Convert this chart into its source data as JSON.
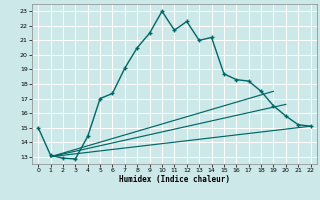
{
  "title": "",
  "xlabel": "Humidex (Indice chaleur)",
  "bg_color": "#cce8e8",
  "grid_color": "#aacccc",
  "line_color": "#006666",
  "xlim": [
    -0.5,
    22.5
  ],
  "ylim": [
    12.5,
    23.5
  ],
  "xticks": [
    0,
    1,
    2,
    3,
    4,
    5,
    6,
    7,
    8,
    9,
    10,
    11,
    12,
    13,
    14,
    15,
    16,
    17,
    18,
    19,
    20,
    21,
    22
  ],
  "yticks": [
    13,
    14,
    15,
    16,
    17,
    18,
    19,
    20,
    21,
    22,
    23
  ],
  "series1_x": [
    0,
    1,
    2,
    3,
    4,
    5,
    6,
    7,
    8,
    9,
    10,
    11,
    12,
    13,
    14,
    15,
    16,
    17,
    18,
    19,
    20,
    21,
    22
  ],
  "series1_y": [
    15.0,
    13.1,
    12.9,
    12.85,
    14.4,
    17.0,
    17.35,
    19.1,
    20.5,
    21.5,
    23.0,
    21.7,
    22.3,
    21.0,
    21.2,
    18.7,
    18.3,
    18.2,
    17.5,
    16.5,
    15.8,
    15.2,
    15.1
  ],
  "series2_x": [
    1,
    22
  ],
  "series2_y": [
    13.0,
    15.1
  ],
  "series3_x": [
    1,
    20
  ],
  "series3_y": [
    13.0,
    16.6
  ],
  "series4_x": [
    1,
    19
  ],
  "series4_y": [
    13.0,
    17.5
  ]
}
